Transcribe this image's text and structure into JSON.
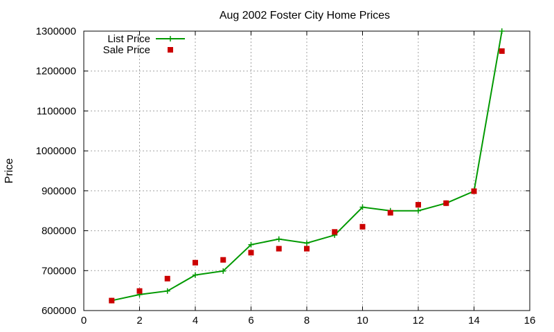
{
  "chart_data": {
    "type": "line",
    "title": "Aug 2002 Foster City Home Prices",
    "xlabel": "",
    "ylabel": "Price",
    "xlim": [
      0,
      16
    ],
    "ylim": [
      600000,
      1300000
    ],
    "x_ticks": [
      0,
      2,
      4,
      6,
      8,
      10,
      12,
      14,
      16
    ],
    "y_ticks": [
      600000,
      700000,
      800000,
      900000,
      1000000,
      1100000,
      1200000,
      1300000
    ],
    "grid": true,
    "legend_position": "top-left",
    "series": [
      {
        "name": "List Price",
        "style": "line-with-plus-markers",
        "color": "#009900",
        "x": [
          1,
          2,
          3,
          4,
          5,
          6,
          7,
          8,
          9,
          10,
          11,
          12,
          13,
          14,
          15
        ],
        "values": [
          625000,
          640000,
          649000,
          689000,
          699000,
          765000,
          779000,
          769000,
          789000,
          859000,
          850000,
          850000,
          869000,
          899000,
          1300000
        ]
      },
      {
        "name": "Sale Price",
        "style": "square-markers",
        "color": "#cc0000",
        "x": [
          1,
          2,
          3,
          4,
          5,
          6,
          7,
          8,
          9,
          10,
          11,
          12,
          13,
          14,
          15
        ],
        "values": [
          625000,
          649000,
          680000,
          720000,
          727000,
          745000,
          755000,
          755000,
          797000,
          810000,
          845000,
          865000,
          869000,
          899000,
          1250000
        ]
      }
    ]
  }
}
